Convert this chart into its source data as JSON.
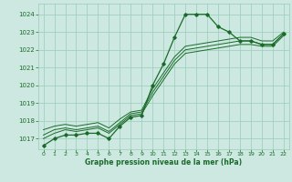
{
  "bg_color": "#cce8e0",
  "grid_color": "#99ccbb",
  "line_color": "#1a6b2a",
  "xlabel": "Graphe pression niveau de la mer (hPa)",
  "xlabel_color": "#1a6b2a",
  "ylim": [
    1016.4,
    1024.6
  ],
  "xlim": [
    -0.5,
    22.5
  ],
  "yticks": [
    1017,
    1018,
    1019,
    1020,
    1021,
    1022,
    1023,
    1024
  ],
  "xticks": [
    0,
    1,
    2,
    3,
    4,
    5,
    6,
    7,
    8,
    9,
    10,
    11,
    12,
    13,
    14,
    15,
    16,
    17,
    18,
    19,
    20,
    21,
    22
  ],
  "main_series": [
    1016.6,
    1017.0,
    1017.2,
    1017.2,
    1017.3,
    1017.3,
    1017.0,
    1017.7,
    1018.2,
    1018.3,
    1020.0,
    1021.2,
    1022.7,
    1024.0,
    1024.0,
    1024.0,
    1023.3,
    1023.0,
    1022.5,
    1022.5,
    1022.3,
    1022.3,
    1022.9
  ],
  "line_series": [
    [
      1017.0,
      1017.3,
      1017.5,
      1017.4,
      1017.5,
      1017.6,
      1017.3,
      1017.8,
      1018.3,
      1018.4,
      1019.4,
      1020.3,
      1021.2,
      1021.8,
      1021.9,
      1022.0,
      1022.1,
      1022.2,
      1022.3,
      1022.3,
      1022.2,
      1022.2,
      1022.8
    ],
    [
      1017.2,
      1017.5,
      1017.6,
      1017.5,
      1017.6,
      1017.7,
      1017.4,
      1017.9,
      1018.4,
      1018.5,
      1019.6,
      1020.5,
      1021.4,
      1022.0,
      1022.1,
      1022.2,
      1022.3,
      1022.4,
      1022.5,
      1022.5,
      1022.3,
      1022.3,
      1022.9
    ],
    [
      1017.5,
      1017.7,
      1017.8,
      1017.7,
      1017.8,
      1017.9,
      1017.6,
      1018.1,
      1018.5,
      1018.6,
      1019.8,
      1020.7,
      1021.6,
      1022.2,
      1022.3,
      1022.4,
      1022.5,
      1022.6,
      1022.7,
      1022.7,
      1022.5,
      1022.5,
      1023.0
    ]
  ]
}
